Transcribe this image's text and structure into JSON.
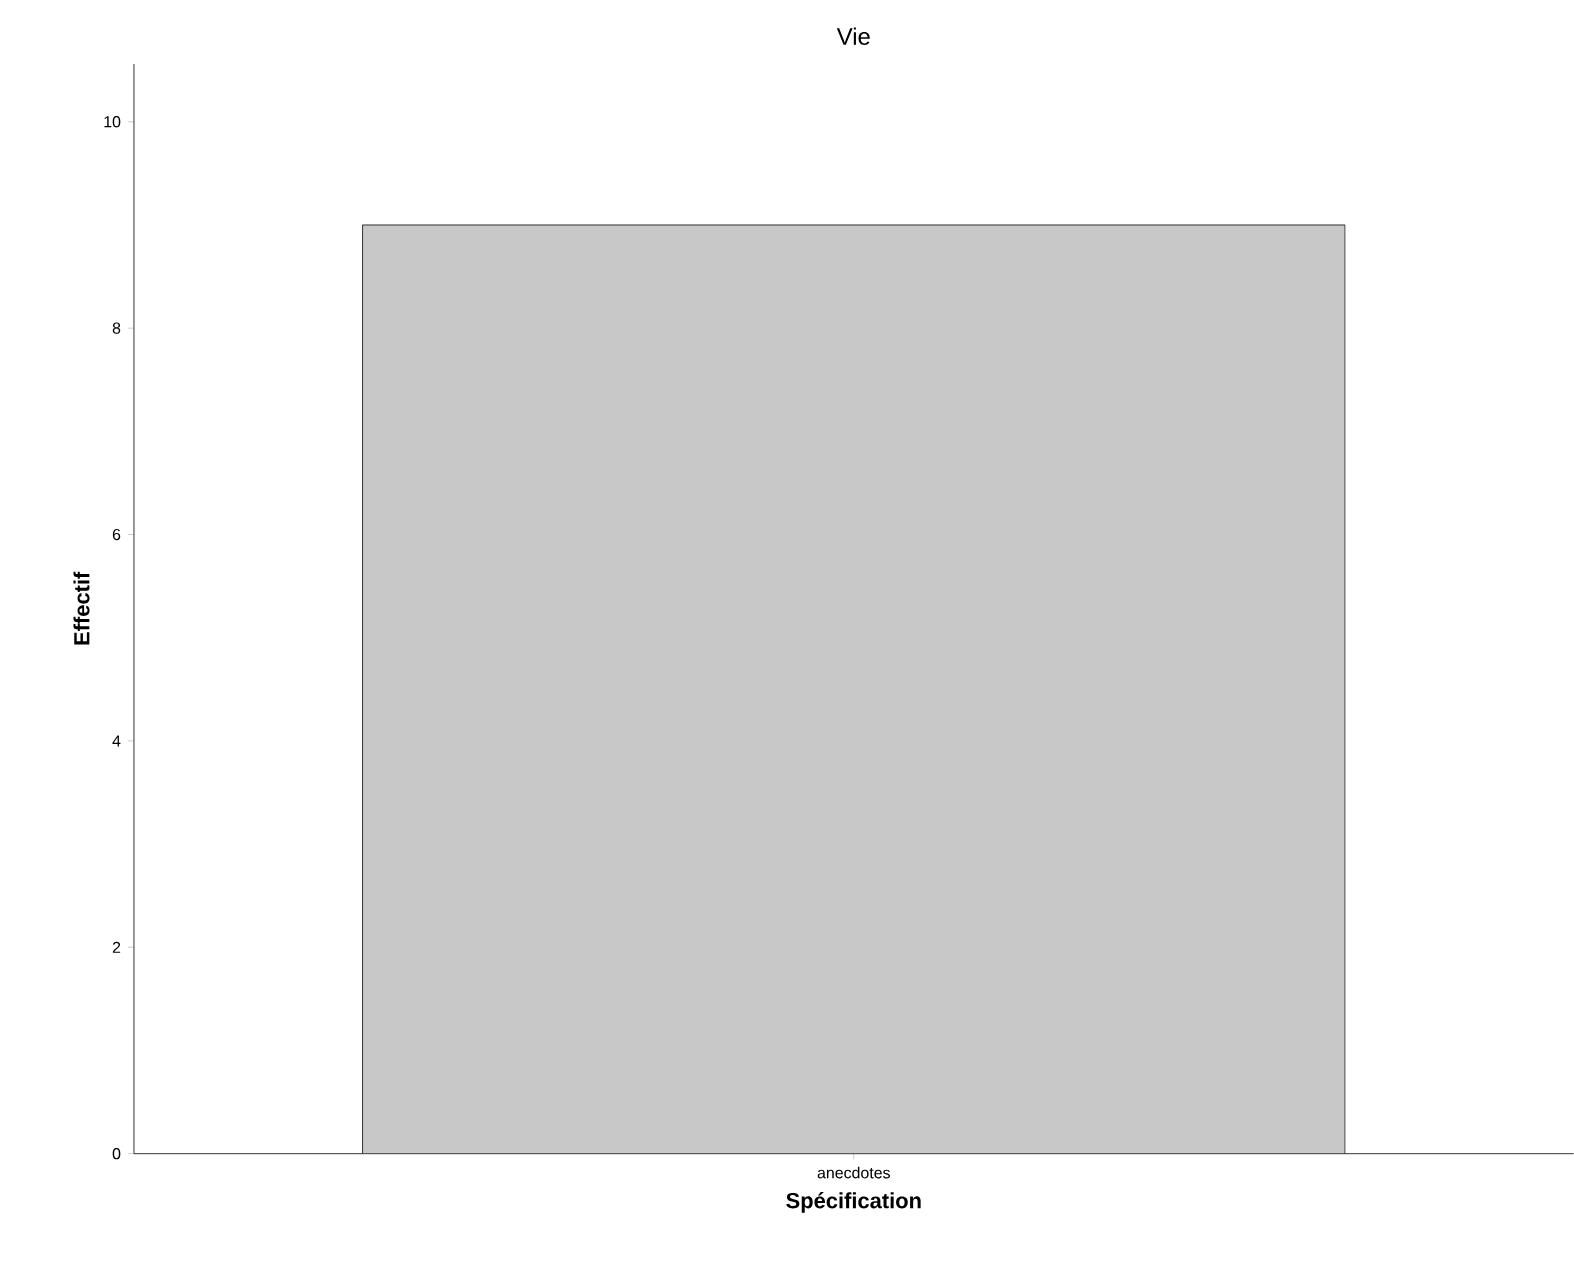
{
  "chart_data": {
    "type": "bar",
    "title": "Vie",
    "xlabel": "Spécification",
    "ylabel": "Effectif",
    "categories": [
      "anecdotes"
    ],
    "values": [
      9
    ],
    "color": "#c8c8c8",
    "ylim": [
      0,
      10.56
    ],
    "yticks": [
      0,
      2,
      4,
      6,
      8,
      10
    ],
    "grid": false
  }
}
